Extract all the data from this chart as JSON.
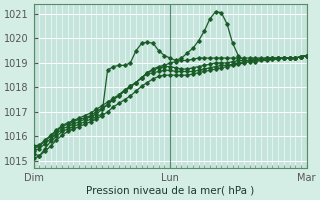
{
  "title": "",
  "xlabel": "Pression niveau de la mer( hPa )",
  "bg_color": "#d4ede5",
  "plot_bg_color": "#c4e4dc",
  "grid_color": "#ffffff",
  "line_color": "#1a5c28",
  "xlim": [
    0,
    48
  ],
  "ylim": [
    1014.7,
    1021.4
  ],
  "yticks": [
    1015,
    1016,
    1017,
    1018,
    1019,
    1020,
    1021
  ],
  "xtick_labels": [
    "Dim",
    "Lun",
    "Mar"
  ],
  "xtick_pos": [
    0,
    24,
    48
  ],
  "series": [
    {
      "x": [
        0,
        1,
        2,
        3,
        4,
        5,
        6,
        7,
        8,
        9,
        10,
        11,
        12,
        13,
        14,
        15,
        16,
        17,
        18,
        19,
        20,
        21,
        22,
        23,
        24,
        25,
        26,
        27,
        28,
        29,
        30,
        31,
        32,
        33,
        34,
        35,
        36,
        37,
        38,
        39,
        40,
        41,
        42,
        43,
        44,
        45,
        46,
        47,
        48
      ],
      "y": [
        1015.3,
        1015.2,
        1015.5,
        1015.8,
        1016.0,
        1016.2,
        1016.3,
        1016.4,
        1016.5,
        1016.6,
        1016.7,
        1016.8,
        1016.9,
        1018.7,
        1018.85,
        1018.9,
        1018.9,
        1019.0,
        1019.5,
        1019.8,
        1019.85,
        1019.8,
        1019.5,
        1019.3,
        1019.2,
        1019.1,
        1019.2,
        1019.4,
        1019.6,
        1019.9,
        1020.3,
        1020.8,
        1021.1,
        1021.05,
        1020.6,
        1019.8,
        1019.3,
        1019.1,
        1019.1,
        1019.1,
        1019.15,
        1019.2,
        1019.2,
        1019.2,
        1019.2,
        1019.2,
        1019.2,
        1019.25,
        1019.3
      ]
    },
    {
      "x": [
        0,
        1,
        2,
        3,
        4,
        5,
        6,
        7,
        8,
        9,
        10,
        11,
        12,
        13,
        14,
        15,
        16,
        17,
        18,
        19,
        20,
        21,
        22,
        23,
        24,
        25,
        26,
        27,
        28,
        29,
        30,
        31,
        32,
        33,
        34,
        35,
        36,
        37,
        38,
        39,
        40,
        41,
        42,
        43,
        44,
        45,
        46,
        47,
        48
      ],
      "y": [
        1015.4,
        1015.5,
        1015.7,
        1015.9,
        1016.1,
        1016.3,
        1016.4,
        1016.5,
        1016.6,
        1016.7,
        1016.8,
        1016.9,
        1017.1,
        1017.3,
        1017.5,
        1017.7,
        1017.85,
        1018.0,
        1018.2,
        1018.4,
        1018.6,
        1018.75,
        1018.85,
        1018.9,
        1019.0,
        1019.05,
        1019.1,
        1019.1,
        1019.15,
        1019.2,
        1019.2,
        1019.2,
        1019.2,
        1019.2,
        1019.2,
        1019.2,
        1019.2,
        1019.2,
        1019.2,
        1019.2,
        1019.2,
        1019.2,
        1019.2,
        1019.2,
        1019.2,
        1019.2,
        1019.2,
        1019.25,
        1019.3
      ]
    },
    {
      "x": [
        0,
        1,
        2,
        3,
        4,
        5,
        6,
        7,
        8,
        9,
        10,
        11,
        12,
        13,
        14,
        15,
        16,
        17,
        18,
        19,
        20,
        21,
        22,
        23,
        24,
        25,
        26,
        27,
        28,
        29,
        30,
        31,
        32,
        33,
        34,
        35,
        36,
        37,
        38,
        39,
        40,
        41,
        42,
        43,
        44,
        45,
        46,
        47,
        48
      ],
      "y": [
        1015.5,
        1015.6,
        1015.8,
        1016.0,
        1016.2,
        1016.4,
        1016.5,
        1016.6,
        1016.7,
        1016.75,
        1016.85,
        1017.0,
        1017.15,
        1017.3,
        1017.5,
        1017.65,
        1017.85,
        1018.05,
        1018.2,
        1018.4,
        1018.6,
        1018.7,
        1018.8,
        1018.85,
        1018.85,
        1018.8,
        1018.75,
        1018.75,
        1018.8,
        1018.85,
        1018.9,
        1018.95,
        1019.0,
        1019.0,
        1019.0,
        1019.05,
        1019.1,
        1019.1,
        1019.1,
        1019.15,
        1019.15,
        1019.2,
        1019.2,
        1019.2,
        1019.2,
        1019.2,
        1019.2,
        1019.25,
        1019.3
      ]
    },
    {
      "x": [
        0,
        1,
        2,
        3,
        4,
        5,
        6,
        7,
        8,
        9,
        10,
        11,
        12,
        13,
        14,
        15,
        16,
        17,
        18,
        19,
        20,
        21,
        22,
        23,
        24,
        25,
        26,
        27,
        28,
        29,
        30,
        31,
        32,
        33,
        34,
        35,
        36,
        37,
        38,
        39,
        40,
        41,
        42,
        43,
        44,
        45,
        46,
        47,
        48
      ],
      "y": [
        1015.6,
        1015.65,
        1015.85,
        1016.05,
        1016.25,
        1016.45,
        1016.55,
        1016.65,
        1016.75,
        1016.85,
        1016.95,
        1017.1,
        1017.25,
        1017.4,
        1017.55,
        1017.7,
        1017.9,
        1018.05,
        1018.2,
        1018.4,
        1018.55,
        1018.6,
        1018.65,
        1018.7,
        1018.7,
        1018.65,
        1018.65,
        1018.65,
        1018.65,
        1018.7,
        1018.75,
        1018.8,
        1018.85,
        1018.9,
        1018.9,
        1018.95,
        1019.0,
        1019.05,
        1019.1,
        1019.1,
        1019.15,
        1019.15,
        1019.15,
        1019.2,
        1019.2,
        1019.2,
        1019.2,
        1019.25,
        1019.3
      ]
    },
    {
      "x": [
        0,
        1,
        2,
        3,
        4,
        5,
        6,
        7,
        8,
        9,
        10,
        11,
        12,
        13,
        14,
        15,
        16,
        17,
        18,
        19,
        20,
        21,
        22,
        23,
        24,
        25,
        26,
        27,
        28,
        29,
        30,
        31,
        32,
        33,
        34,
        35,
        36,
        37,
        38,
        39,
        40,
        41,
        42,
        43,
        44,
        45,
        46,
        47,
        48
      ],
      "y": [
        1015.1,
        1015.2,
        1015.4,
        1015.6,
        1015.85,
        1016.05,
        1016.2,
        1016.3,
        1016.4,
        1016.5,
        1016.6,
        1016.7,
        1016.85,
        1017.0,
        1017.2,
        1017.35,
        1017.5,
        1017.65,
        1017.85,
        1018.05,
        1018.2,
        1018.35,
        1018.45,
        1018.5,
        1018.5,
        1018.5,
        1018.5,
        1018.5,
        1018.55,
        1018.6,
        1018.65,
        1018.7,
        1018.75,
        1018.8,
        1018.85,
        1018.9,
        1018.95,
        1019.0,
        1019.05,
        1019.05,
        1019.1,
        1019.1,
        1019.15,
        1019.15,
        1019.2,
        1019.2,
        1019.2,
        1019.25,
        1019.3
      ]
    }
  ]
}
